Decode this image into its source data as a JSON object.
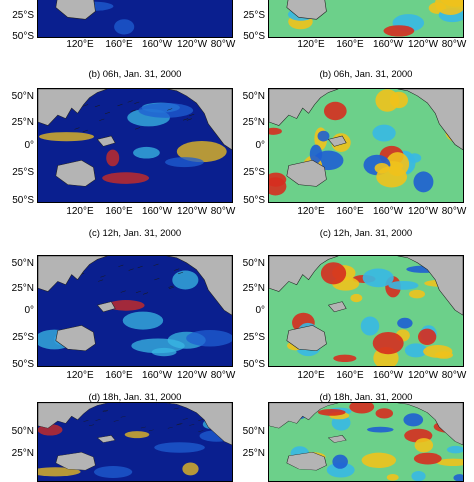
{
  "rows": [
    {
      "panels": [
        {
          "id": "r0-left",
          "lat_labels": [
            "25°S",
            "50°S"
          ],
          "lon_labels": [
            "120°E",
            "160°E",
            "160°W",
            "120°W",
            "80°W"
          ],
          "style": "speed"
        },
        {
          "id": "r0-right",
          "lat_labels": [
            "25°S",
            "50°S"
          ],
          "lon_labels": [
            "120°E",
            "160°E",
            "160°W",
            "120°W",
            "80°W"
          ],
          "style": "anomaly"
        }
      ],
      "captions": [
        "(b) 06h, Jan. 31, 2000",
        "(b) 06h, Jan. 31, 2000"
      ]
    },
    {
      "panels": [
        {
          "id": "r1-left",
          "lat_labels": [
            "50°N",
            "25°N",
            "0°",
            "25°S",
            "50°S"
          ],
          "lon_labels": [
            "120°E",
            "160°E",
            "160°W",
            "120°W",
            "80°W"
          ],
          "style": "speed"
        },
        {
          "id": "r1-right",
          "lat_labels": [
            "50°N",
            "25°N",
            "0°",
            "25°S",
            "50°S"
          ],
          "lon_labels": [
            "120°E",
            "160°E",
            "160°W",
            "120°W",
            "80°W"
          ],
          "style": "anomaly"
        }
      ],
      "captions": [
        "(c) 12h, Jan. 31, 2000",
        "(c) 12h, Jan. 31, 2000"
      ]
    },
    {
      "panels": [
        {
          "id": "r2-left",
          "lat_labels": [
            "50°N",
            "25°N",
            "0°",
            "25°S",
            "50°S"
          ],
          "lon_labels": [
            "120°E",
            "160°E",
            "160°W",
            "120°W",
            "80°W"
          ],
          "style": "speed"
        },
        {
          "id": "r2-right",
          "lat_labels": [
            "50°N",
            "25°N",
            "0°",
            "25°S",
            "50°S"
          ],
          "lon_labels": [
            "120°E",
            "160°E",
            "160°W",
            "120°W",
            "80°W"
          ],
          "style": "anomaly"
        }
      ],
      "captions": [
        "(d) 18h, Jan. 31, 2000",
        "(d) 18h, Jan. 31, 2000"
      ]
    },
    {
      "panels": [
        {
          "id": "r3-left",
          "lat_labels": [
            "50°N",
            "25°N"
          ],
          "lon_labels": [],
          "style": "speed"
        },
        {
          "id": "r3-right",
          "lat_labels": [
            "50°N",
            "25°N"
          ],
          "lon_labels": [],
          "style": "anomaly"
        }
      ],
      "captions": []
    }
  ],
  "colors": {
    "land": "#b4b4b4",
    "ocean_low": "#0a1f8f",
    "ocean_mid": "#1f5fd1",
    "hot": "#d62d1f",
    "warm": "#f0c21c",
    "cool": "#39b8e3",
    "neutral": "#6cd08a"
  }
}
